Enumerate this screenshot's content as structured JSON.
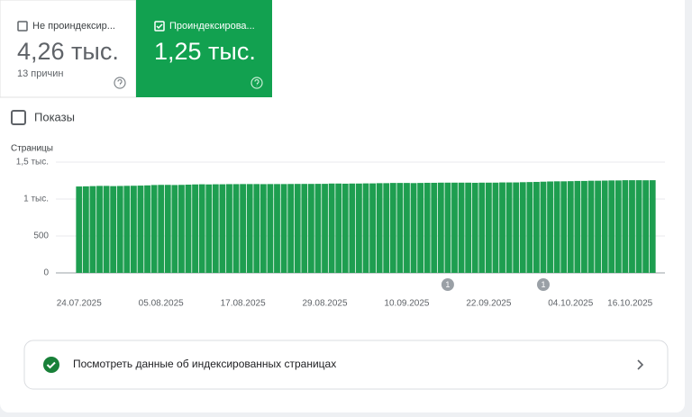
{
  "tiles": {
    "not_indexed": {
      "label": "Не проиндексир...",
      "value": "4,26 тыс.",
      "note": "13 причин"
    },
    "indexed": {
      "label": "Проиндексирова...",
      "value": "1,25 тыс."
    }
  },
  "impressions_toggle": "Показы",
  "chart_data": {
    "type": "bar",
    "y_label": "Страницы",
    "color": "#1e9e50",
    "categories": [
      "24.07.2025",
      null,
      null,
      null,
      null,
      null,
      null,
      null,
      null,
      null,
      null,
      null,
      "05.08.2025",
      null,
      null,
      null,
      null,
      null,
      null,
      null,
      null,
      null,
      null,
      null,
      "17.08.2025",
      null,
      null,
      null,
      null,
      null,
      null,
      null,
      null,
      null,
      null,
      null,
      "29.08.2025",
      null,
      null,
      null,
      null,
      null,
      null,
      null,
      null,
      null,
      null,
      null,
      "10.09.2025",
      null,
      null,
      null,
      null,
      null,
      null,
      null,
      null,
      null,
      null,
      null,
      "22.09.2025",
      null,
      null,
      null,
      null,
      null,
      null,
      null,
      null,
      null,
      null,
      null,
      "04.10.2025",
      null,
      null,
      null,
      null,
      null,
      null,
      null,
      null,
      null,
      null,
      null,
      "16.10.2025"
    ],
    "values": [
      1170,
      1172,
      1175,
      1178,
      1178,
      1175,
      1177,
      1179,
      1180,
      1182,
      1185,
      1190,
      1192,
      1192,
      1190,
      1192,
      1195,
      1198,
      1200,
      1198,
      1200,
      1200,
      1202,
      1202,
      1203,
      1203,
      1203,
      1202,
      1203,
      1203,
      1203,
      1204,
      1205,
      1205,
      1205,
      1206,
      1206,
      1210,
      1210,
      1208,
      1210,
      1210,
      1212,
      1212,
      1215,
      1215,
      1218,
      1218,
      1218,
      1216,
      1218,
      1220,
      1220,
      1222,
      1222,
      1222,
      1222,
      1222,
      1220,
      1222,
      1222,
      1222,
      1225,
      1225,
      1225,
      1228,
      1230,
      1232,
      1235,
      1238,
      1240,
      1240,
      1242,
      1245,
      1245,
      1248,
      1248,
      1250,
      1252,
      1252,
      1255,
      1255,
      1255,
      1254,
      1255
    ],
    "ylim": [
      0,
      1500
    ],
    "yticks": [
      0,
      500,
      {
        "value": 1000,
        "label": "1 тыс."
      },
      {
        "value": 1500,
        "label": "1,5 тыс."
      }
    ],
    "grid": true,
    "annotations": [
      {
        "at": 54,
        "label": "1"
      },
      {
        "at": 68,
        "label": "1"
      }
    ]
  },
  "link": "Посмотреть данные об индексированных страницах"
}
